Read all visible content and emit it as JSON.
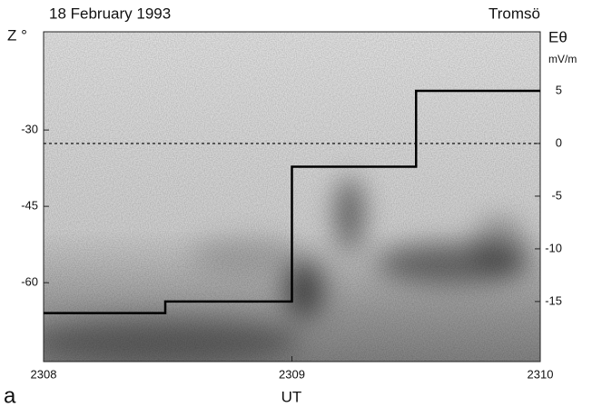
{
  "chart_data": {
    "type": "line",
    "title": "18 February 1993",
    "location": "Tromsö",
    "panel_label": "a",
    "xlabel": "UT",
    "ylabel": "Z °",
    "y2label": "Eθ",
    "y2unit": "mV/m",
    "xlim": [
      1388,
      1390
    ],
    "xticks": [
      {
        "value": 1388,
        "label": "2308"
      },
      {
        "value": 1389,
        "label": "2309"
      },
      {
        "value": 1390,
        "label": "2310"
      }
    ],
    "ylim": [
      -75.5,
      -10.7
    ],
    "yticks": [
      -30,
      -45,
      -60
    ],
    "y2lim": [
      -20.7,
      10.6
    ],
    "y2ticks": [
      5,
      0,
      -5,
      -10,
      -15
    ],
    "zero_line": true,
    "series": [
      {
        "x": [
          1388,
          1388.49,
          1388.49,
          1389,
          1389,
          1389.5,
          1389.5,
          1390
        ],
        "values": [
          -16.1,
          -16.1,
          -15,
          -15,
          -2.2,
          -2.2,
          5,
          5
        ],
        "color": "#000000",
        "axis": "y2"
      }
    ]
  }
}
